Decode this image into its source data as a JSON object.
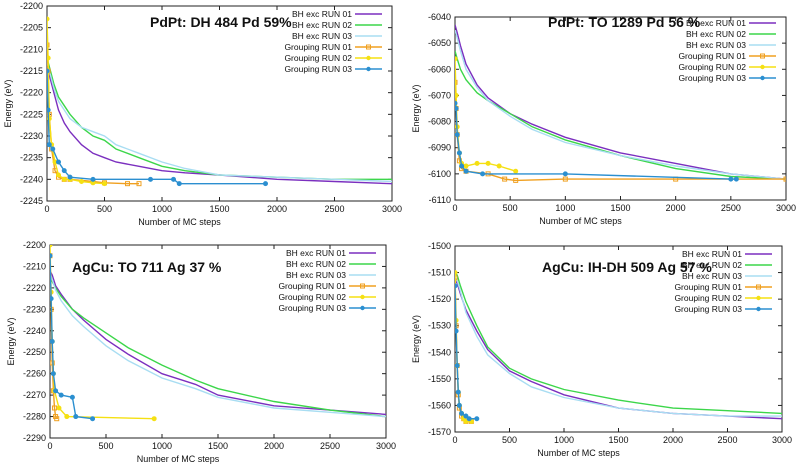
{
  "chart_data": [
    {
      "type": "line",
      "title": "PdPt: DH 484 Pd 59%",
      "xlabel": "Number of MC steps",
      "ylabel": "Energy (eV)",
      "xlim": [
        0,
        3000
      ],
      "ylim": [
        -2245,
        -2200
      ],
      "xticks": [
        0,
        500,
        1000,
        1500,
        2000,
        2500,
        3000
      ],
      "yticks": [
        -2245,
        -2240,
        -2235,
        -2230,
        -2225,
        -2220,
        -2215,
        -2210,
        -2205,
        -2200
      ],
      "series": [
        {
          "name": "BH exc RUN 01",
          "color": "#7b2fbf",
          "marker": "none",
          "x": [
            0,
            30,
            60,
            100,
            150,
            200,
            300,
            400,
            500,
            600,
            800,
            1000,
            1200,
            1500,
            2000,
            2500,
            3000
          ],
          "y": [
            -2214,
            -2217,
            -2220,
            -2224,
            -2227,
            -2229,
            -2232,
            -2234,
            -2235,
            -2236,
            -2237,
            -2238,
            -2238.5,
            -2239,
            -2240,
            -2240.5,
            -2241
          ]
        },
        {
          "name": "BH exc RUN 02",
          "color": "#3cd64a",
          "marker": "none",
          "x": [
            0,
            30,
            60,
            100,
            150,
            200,
            300,
            400,
            500,
            600,
            800,
            1000,
            1200,
            1500,
            2000,
            2500,
            3000
          ],
          "y": [
            -2212,
            -2215,
            -2218,
            -2221,
            -2223,
            -2225,
            -2228,
            -2230,
            -2231,
            -2233,
            -2235,
            -2237,
            -2238,
            -2239,
            -2239.5,
            -2240,
            -2240
          ]
        },
        {
          "name": "BH exc RUN 03",
          "color": "#a8ddf2",
          "marker": "none",
          "x": [
            0,
            30,
            60,
            100,
            150,
            200,
            300,
            400,
            500,
            600,
            800,
            1000,
            1200,
            1500,
            2000,
            2500,
            3000
          ],
          "y": [
            -2213,
            -2216,
            -2219,
            -2222,
            -2224,
            -2226,
            -2228,
            -2229,
            -2230,
            -2232,
            -2234,
            -2236,
            -2237.5,
            -2239,
            -2239.5,
            -2240,
            -2240.5
          ]
        },
        {
          "name": "Grouping RUN 01",
          "color": "#f0a020",
          "marker": "square",
          "x": [
            0,
            10,
            20,
            40,
            70,
            100,
            150,
            200,
            400,
            500,
            700,
            800
          ],
          "y": [
            -2209,
            -2215,
            -2225,
            -2233,
            -2238,
            -2239.5,
            -2240,
            -2240,
            -2240.5,
            -2240.8,
            -2241,
            -2241
          ]
        },
        {
          "name": "Grouping RUN 02",
          "color": "#f5e012",
          "marker": "circle",
          "x": [
            0,
            10,
            20,
            40,
            70,
            100,
            150,
            200,
            300,
            400,
            500
          ],
          "y": [
            -2203,
            -2212,
            -2226,
            -2232,
            -2236,
            -2239,
            -2240,
            -2240,
            -2240.5,
            -2240.8,
            -2241
          ]
        },
        {
          "name": "Grouping RUN 03",
          "color": "#2b8fd0",
          "marker": "circle",
          "x": [
            0,
            10,
            20,
            50,
            100,
            150,
            200,
            400,
            900,
            1100,
            1150,
            1900
          ],
          "y": [
            -2215,
            -2224,
            -2232,
            -2233,
            -2236,
            -2238,
            -2239.5,
            -2240,
            -2240,
            -2240,
            -2241,
            -2241
          ]
        }
      ]
    },
    {
      "type": "line",
      "title": "PdPt: TO 1289 Pd 56 %",
      "xlabel": "Number of MC steps",
      "ylabel": "Energy (eV)",
      "xlim": [
        0,
        3000
      ],
      "ylim": [
        -6110,
        -6040
      ],
      "xticks": [
        0,
        500,
        1000,
        1500,
        2000,
        2500,
        3000
      ],
      "yticks": [
        -6110,
        -6100,
        -6090,
        -6080,
        -6070,
        -6060,
        -6050,
        -6040
      ],
      "series": [
        {
          "name": "BH exc RUN 01",
          "color": "#7b2fbf",
          "marker": "none",
          "x": [
            0,
            20,
            50,
            100,
            200,
            300,
            500,
            700,
            1000,
            1500,
            2000,
            2500,
            3000
          ],
          "y": [
            -6043,
            -6046,
            -6051,
            -6058,
            -6066,
            -6071,
            -6077,
            -6081,
            -6086,
            -6092,
            -6096,
            -6100,
            -6102
          ]
        },
        {
          "name": "BH exc RUN 02",
          "color": "#3cd64a",
          "marker": "none",
          "x": [
            0,
            20,
            50,
            100,
            200,
            300,
            500,
            700,
            1000,
            1500,
            2000,
            2500,
            3000
          ],
          "y": [
            -6053,
            -6056,
            -6060,
            -6064,
            -6069,
            -6072,
            -6077,
            -6082,
            -6087,
            -6093,
            -6098,
            -6101,
            -6102
          ]
        },
        {
          "name": "BH exc RUN 03",
          "color": "#a8ddf2",
          "marker": "none",
          "x": [
            0,
            20,
            50,
            100,
            200,
            300,
            500,
            700,
            1000,
            1500,
            2000,
            2500,
            3000
          ],
          "y": [
            -6045,
            -6048,
            -6053,
            -6060,
            -6067,
            -6072,
            -6078,
            -6083,
            -6088,
            -6093,
            -6097,
            -6100,
            -6102
          ]
        },
        {
          "name": "Grouping RUN 01",
          "color": "#f0a020",
          "marker": "square",
          "x": [
            0,
            10,
            20,
            40,
            60,
            100,
            300,
            450,
            550,
            1000,
            2000,
            3000
          ],
          "y": [
            -6065,
            -6075,
            -6085,
            -6095,
            -6098,
            -6099,
            -6100,
            -6102,
            -6102.5,
            -6102,
            -6102,
            -6102
          ]
        },
        {
          "name": "Grouping RUN 02",
          "color": "#f5e012",
          "marker": "circle",
          "x": [
            0,
            10,
            20,
            40,
            60,
            100,
            200,
            300,
            400,
            550
          ],
          "y": [
            -6056,
            -6070,
            -6082,
            -6092,
            -6096,
            -6097,
            -6096,
            -6096,
            -6097,
            -6099
          ]
        },
        {
          "name": "Grouping RUN 03",
          "color": "#2b8fd0",
          "marker": "circle",
          "x": [
            0,
            10,
            20,
            40,
            60,
            100,
            250,
            1000,
            2500,
            2550
          ],
          "y": [
            -6073,
            -6075,
            -6085,
            -6092,
            -6097,
            -6099,
            -6100,
            -6100,
            -6102,
            -6102
          ]
        }
      ]
    },
    {
      "type": "line",
      "title": "AgCu: TO 711 Ag 37 %",
      "xlabel": "Number of MC steps",
      "ylabel": "Energy (eV)",
      "xlim": [
        0,
        3000
      ],
      "ylim": [
        -2290,
        -2200
      ],
      "xticks": [
        0,
        500,
        1000,
        1500,
        2000,
        2500,
        3000
      ],
      "yticks": [
        -2290,
        -2280,
        -2270,
        -2260,
        -2250,
        -2240,
        -2230,
        -2220,
        -2210,
        -2200
      ],
      "series": [
        {
          "name": "BH exc RUN 01",
          "color": "#7b2fbf",
          "marker": "none",
          "x": [
            0,
            20,
            50,
            100,
            200,
            300,
            500,
            700,
            1000,
            1300,
            1500,
            2000,
            2500,
            3000
          ],
          "y": [
            -2212,
            -2214,
            -2219,
            -2223,
            -2230,
            -2235,
            -2244,
            -2251,
            -2260,
            -2265,
            -2270,
            -2275,
            -2277,
            -2279
          ]
        },
        {
          "name": "BH exc RUN 02",
          "color": "#3cd64a",
          "marker": "none",
          "x": [
            0,
            20,
            50,
            100,
            200,
            300,
            500,
            700,
            1000,
            1300,
            1500,
            2000,
            2500,
            3000
          ],
          "y": [
            -2215,
            -2217,
            -2220,
            -2224,
            -2230,
            -2234,
            -2241,
            -2248,
            -2256,
            -2263,
            -2267,
            -2273,
            -2277,
            -2280
          ]
        },
        {
          "name": "BH exc RUN 03",
          "color": "#a8ddf2",
          "marker": "none",
          "x": [
            0,
            20,
            50,
            100,
            200,
            300,
            500,
            700,
            1000,
            1300,
            1500,
            2000,
            2500,
            3000
          ],
          "y": [
            -2213,
            -2216,
            -2221,
            -2226,
            -2233,
            -2238,
            -2247,
            -2254,
            -2262,
            -2267,
            -2271,
            -2276,
            -2278,
            -2280
          ]
        },
        {
          "name": "Grouping RUN 01",
          "color": "#f0a020",
          "marker": "square",
          "x": [
            0,
            10,
            20,
            30,
            40,
            50,
            60
          ],
          "y": [
            -2205,
            -2230,
            -2255,
            -2268,
            -2276,
            -2280,
            -2281
          ]
        },
        {
          "name": "Grouping RUN 02",
          "color": "#f5e012",
          "marker": "circle",
          "x": [
            0,
            10,
            20,
            30,
            40,
            80,
            150,
            930
          ],
          "y": [
            -2200,
            -2222,
            -2245,
            -2260,
            -2268,
            -2276,
            -2280,
            -2281
          ]
        },
        {
          "name": "Grouping RUN 03",
          "color": "#2b8fd0",
          "marker": "circle",
          "x": [
            0,
            10,
            20,
            30,
            50,
            100,
            200,
            230,
            380
          ],
          "y": [
            -2205,
            -2225,
            -2245,
            -2260,
            -2268,
            -2270,
            -2271,
            -2280,
            -2281
          ]
        }
      ]
    },
    {
      "type": "line",
      "title": "AgCu: IH-DH 509 Ag 57 %",
      "xlabel": "Number of MC steps",
      "ylabel": "Energy (eV)",
      "xlim": [
        0,
        3000
      ],
      "ylim": [
        -1570,
        -1500
      ],
      "xticks": [
        0,
        500,
        1000,
        1500,
        2000,
        2500,
        3000
      ],
      "yticks": [
        -1570,
        -1560,
        -1550,
        -1540,
        -1530,
        -1520,
        -1510,
        -1500
      ],
      "series": [
        {
          "name": "BH exc RUN 01",
          "color": "#7b2fbf",
          "marker": "none",
          "x": [
            0,
            20,
            50,
            100,
            200,
            300,
            500,
            700,
            1000,
            1500,
            2000,
            2500,
            3000
          ],
          "y": [
            -1513,
            -1514,
            -1518,
            -1524,
            -1532,
            -1539,
            -1547,
            -1551,
            -1556,
            -1561,
            -1563,
            -1564,
            -1565
          ]
        },
        {
          "name": "BH exc RUN 02",
          "color": "#3cd64a",
          "marker": "none",
          "x": [
            0,
            20,
            50,
            100,
            200,
            300,
            500,
            700,
            1000,
            1500,
            2000,
            2500,
            3000
          ],
          "y": [
            -1510,
            -1511,
            -1515,
            -1521,
            -1530,
            -1538,
            -1546,
            -1550,
            -1554,
            -1558,
            -1561,
            -1562,
            -1563
          ]
        },
        {
          "name": "BH exc RUN 03",
          "color": "#a8ddf2",
          "marker": "none",
          "x": [
            0,
            20,
            50,
            100,
            200,
            300,
            500,
            700,
            1000,
            1500,
            2000,
            2500,
            3000
          ],
          "y": [
            -1512,
            -1513,
            -1517,
            -1525,
            -1534,
            -1541,
            -1548,
            -1553,
            -1557,
            -1561,
            -1563,
            -1564,
            -1564
          ]
        },
        {
          "name": "Grouping RUN 01",
          "color": "#f0a020",
          "marker": "square",
          "x": [
            0,
            10,
            20,
            30,
            40,
            60,
            80,
            100,
            150
          ],
          "y": [
            -1512,
            -1530,
            -1545,
            -1556,
            -1561,
            -1564,
            -1565,
            -1566,
            -1566
          ]
        },
        {
          "name": "Grouping RUN 02",
          "color": "#f5e012",
          "marker": "circle",
          "x": [
            0,
            10,
            20,
            30,
            40,
            60,
            80,
            100,
            150
          ],
          "y": [
            -1510,
            -1528,
            -1545,
            -1555,
            -1560,
            -1563,
            -1565,
            -1566,
            -1566
          ]
        },
        {
          "name": "Grouping RUN 03",
          "color": "#2b8fd0",
          "marker": "circle",
          "x": [
            0,
            10,
            20,
            30,
            40,
            60,
            100,
            130,
            200
          ],
          "y": [
            -1515,
            -1532,
            -1545,
            -1555,
            -1560,
            -1563,
            -1564,
            -1565,
            -1565
          ]
        }
      ]
    }
  ]
}
